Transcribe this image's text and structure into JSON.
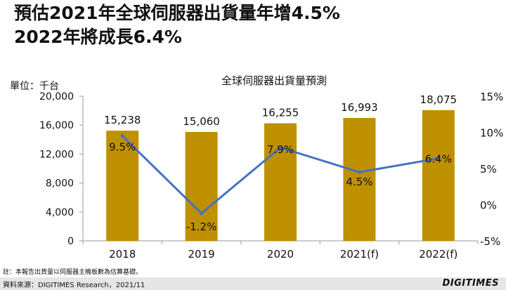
{
  "headline": {
    "line1": "預估2021年全球伺服器出貨量年增4.5%",
    "line2": "2022年將成長6.4%"
  },
  "chart_data": {
    "type": "bar",
    "title": "全球伺服器出貨量預測",
    "unit_label": "單位：千台",
    "categories": [
      "2018",
      "2019",
      "2020",
      "2021(f)",
      "2022(f)"
    ],
    "series": [
      {
        "values": [
          15238,
          15060,
          16255,
          16993,
          18075
        ],
        "labels": [
          "15,238",
          "15,060",
          "16,255",
          "16,993",
          "18,075"
        ],
        "color": "#bf9000",
        "axis": "left",
        "kind": "bar"
      },
      {
        "values": [
          9.5,
          -1.2,
          7.9,
          4.5,
          6.4
        ],
        "labels": [
          "9.5%",
          "-1.2%",
          "7.9%",
          "4.5%",
          "6.4%"
        ],
        "color": "#4472c4",
        "axis": "right",
        "kind": "line"
      }
    ],
    "ylim": [
      0,
      20000
    ],
    "y_ticks": [
      "0",
      "4,000",
      "8,000",
      "12,000",
      "16,000",
      "20,000"
    ],
    "y2lim": [
      -5,
      15
    ],
    "y2_ticks": [
      "-5%",
      "0%",
      "5%",
      "10%",
      "15%"
    ],
    "grid": false
  },
  "footer": {
    "note": "註：本報告出貨量以伺服器主機板數為估算基礎。",
    "source": "資料來源：DIGITIMES Research，2021/11",
    "logo": "DIGITIMES"
  }
}
